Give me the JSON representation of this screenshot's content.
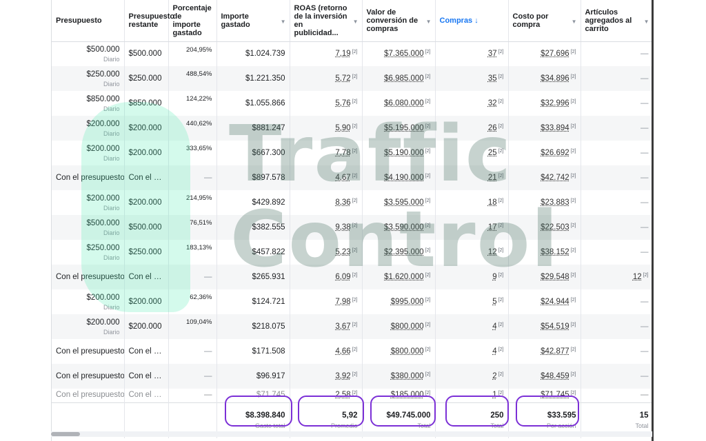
{
  "columns": [
    {
      "label": "Presupuesto",
      "active": false
    },
    {
      "label": "Presupuesto restante",
      "active": false
    },
    {
      "label": "Porcentaje de importe gastado",
      "active": false
    },
    {
      "label": "Importe gastado",
      "active": false
    },
    {
      "label": "ROAS (retorno de la inversión en publicidad...",
      "active": false
    },
    {
      "label": "Valor de conversión de compras",
      "active": false
    },
    {
      "label": "Compras ↓",
      "active": true
    },
    {
      "label": "Costo por compra",
      "active": false
    },
    {
      "label": "Artículos agregados al carrito",
      "active": false
    }
  ],
  "rows": [
    {
      "budget": "$500.000",
      "budget_sub": "Diario",
      "remaining": "$500.000",
      "pct": "204,95%",
      "spent": "$1.024.739",
      "roas": "7,19",
      "conv_value": "$7.365.000",
      "purchases": "37",
      "cpp": "$27.696",
      "cart": "—"
    },
    {
      "budget": "$250.000",
      "budget_sub": "Diario",
      "remaining": "$250.000",
      "pct": "488,54%",
      "spent": "$1.221.350",
      "roas": "5,72",
      "conv_value": "$6.985.000",
      "purchases": "35",
      "cpp": "$34.896",
      "cart": "—"
    },
    {
      "budget": "$850.000",
      "budget_sub": "Diario",
      "remaining": "$850.000",
      "pct": "124,22%",
      "spent": "$1.055.866",
      "roas": "5,76",
      "conv_value": "$6.080.000",
      "purchases": "32",
      "cpp": "$32.996",
      "cart": "—"
    },
    {
      "budget": "$200.000",
      "budget_sub": "Diario",
      "remaining": "$200.000",
      "pct": "440,62%",
      "spent": "$881.247",
      "roas": "5,90",
      "conv_value": "$5.195.000",
      "purchases": "26",
      "cpp": "$33.894",
      "cart": "—"
    },
    {
      "budget": "$200.000",
      "budget_sub": "Diario",
      "remaining": "$200.000",
      "pct": "333,65%",
      "spent": "$667.300",
      "roas": "7,78",
      "conv_value": "$5.190.000",
      "purchases": "25",
      "cpp": "$26.692",
      "cart": "—"
    },
    {
      "budget": "Con el presupuesto...",
      "budget_sub": "",
      "remaining": "Con el p...",
      "pct": "—",
      "spent": "$897.578",
      "roas": "4,67",
      "conv_value": "$4.190.000",
      "purchases": "21",
      "cpp": "$42.742",
      "cart": "—"
    },
    {
      "budget": "$200.000",
      "budget_sub": "Diario",
      "remaining": "$200.000",
      "pct": "214,95%",
      "spent": "$429.892",
      "roas": "8,36",
      "conv_value": "$3.595.000",
      "purchases": "18",
      "cpp": "$23.883",
      "cart": "—"
    },
    {
      "budget": "$500.000",
      "budget_sub": "Diario",
      "remaining": "$500.000",
      "pct": "76,51%",
      "spent": "$382.555",
      "roas": "9,38",
      "conv_value": "$3.590.000",
      "purchases": "17",
      "cpp": "$22.503",
      "cart": "—"
    },
    {
      "budget": "$250.000",
      "budget_sub": "Diario",
      "remaining": "$250.000",
      "pct": "183,13%",
      "spent": "$457.822",
      "roas": "5,23",
      "conv_value": "$2.395.000",
      "purchases": "12",
      "cpp": "$38.152",
      "cart": "—"
    },
    {
      "budget": "Con el presupuesto...",
      "budget_sub": "",
      "remaining": "Con el p...",
      "pct": "—",
      "spent": "$265.931",
      "roas": "6,09",
      "conv_value": "$1.620.000",
      "purchases": "9",
      "cpp": "$29.548",
      "cart": "12"
    },
    {
      "budget": "$200.000",
      "budget_sub": "Diario",
      "remaining": "$200.000",
      "pct": "62,36%",
      "spent": "$124.721",
      "roas": "7,98",
      "conv_value": "$995.000",
      "purchases": "5",
      "cpp": "$24.944",
      "cart": "—"
    },
    {
      "budget": "$200.000",
      "budget_sub": "Diario",
      "remaining": "$200.000",
      "pct": "109,04%",
      "spent": "$218.075",
      "roas": "3,67",
      "conv_value": "$800.000",
      "purchases": "4",
      "cpp": "$54.519",
      "cart": "—"
    },
    {
      "budget": "Con el presupuesto...",
      "budget_sub": "",
      "remaining": "Con el p...",
      "pct": "—",
      "spent": "$171.508",
      "roas": "4,66",
      "conv_value": "$800.000",
      "purchases": "4",
      "cpp": "$42.877",
      "cart": "—"
    },
    {
      "budget": "Con el presupuesto...",
      "budget_sub": "",
      "remaining": "Con el p...",
      "pct": "—",
      "spent": "$96.917",
      "roas": "3,92",
      "conv_value": "$380.000",
      "purchases": "2",
      "cpp": "$48.459",
      "cart": "—"
    },
    {
      "budget": "Con el presupuesto...",
      "budget_sub": "",
      "remaining": "Con el p...",
      "pct": "—",
      "spent": "$71.745",
      "roas": "2,58",
      "conv_value": "$185.000",
      "purchases": "1",
      "cpp": "$71.745",
      "cart": "—"
    }
  ],
  "totals": {
    "spent": "$8.398.840",
    "spent_label": "Gasto total",
    "roas": "5,92",
    "roas_label": "Promedio",
    "conv_value": "$49.745.000",
    "conv_value_label": "Total",
    "purchases": "250",
    "purchases_label": "Total",
    "cpp": "$33.595",
    "cpp_label": "Por acción",
    "cart": "15",
    "cart_label": "Total"
  },
  "ref_marker": "[2]",
  "watermark": {
    "line1": "Traffic",
    "line2": "Control"
  },
  "colors": {
    "highlight": "#7b2fd6",
    "active_header": "#1877f2",
    "watermark_green": "#3ce6aa"
  }
}
